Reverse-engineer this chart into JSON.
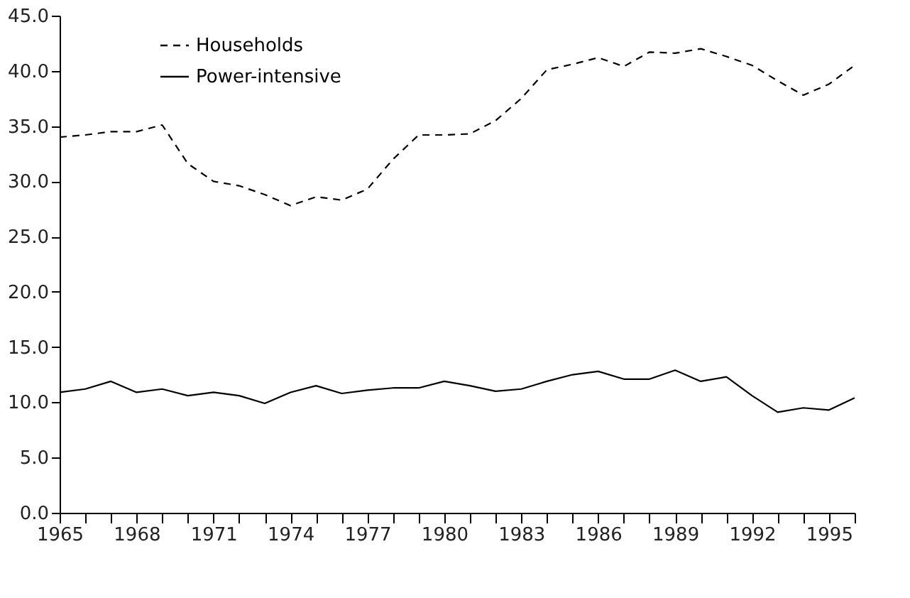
{
  "chart_data": {
    "type": "line",
    "x": [
      1965,
      1966,
      1967,
      1968,
      1969,
      1970,
      1971,
      1972,
      1973,
      1974,
      1975,
      1976,
      1977,
      1978,
      1979,
      1980,
      1981,
      1982,
      1983,
      1984,
      1985,
      1986,
      1987,
      1988,
      1989,
      1990,
      1991,
      1992,
      1993,
      1994,
      1995,
      1996
    ],
    "series": [
      {
        "name": "Households",
        "color": "#000000",
        "line_style": "dashed",
        "values": [
          34.0,
          34.2,
          34.5,
          34.5,
          35.1,
          31.6,
          30.0,
          29.6,
          28.8,
          27.8,
          28.6,
          28.3,
          29.3,
          32.0,
          34.2,
          34.2,
          34.3,
          35.5,
          37.5,
          40.1,
          40.6,
          41.2,
          40.4,
          41.7,
          41.6,
          42.0,
          41.3,
          40.5,
          39.1,
          37.8,
          38.8,
          40.5
        ]
      },
      {
        "name": "Power-intensive",
        "color": "#000000",
        "line_style": "solid",
        "values": [
          10.9,
          11.2,
          11.9,
          10.9,
          11.2,
          10.6,
          10.9,
          10.6,
          9.9,
          10.9,
          11.5,
          10.8,
          11.1,
          11.3,
          11.3,
          11.9,
          11.5,
          11.0,
          11.2,
          11.9,
          12.5,
          12.8,
          12.1,
          12.1,
          12.9,
          11.9,
          12.3,
          10.6,
          9.1,
          9.5,
          9.3,
          10.4
        ]
      }
    ],
    "xlim": [
      1965,
      1996
    ],
    "xticks": [
      1965,
      {
        "value": 1966,
        "label": null
      },
      {
        "value": 1967,
        "label": null
      },
      1968,
      {
        "value": 1969,
        "label": null
      },
      {
        "value": 1970,
        "label": null
      },
      1971,
      {
        "value": 1972,
        "label": null
      },
      {
        "value": 1973,
        "label": null
      },
      1974,
      {
        "value": 1975,
        "label": null
      },
      {
        "value": 1976,
        "label": null
      },
      1977,
      {
        "value": 1978,
        "label": null
      },
      {
        "value": 1979,
        "label": null
      },
      1980,
      {
        "value": 1981,
        "label": null
      },
      {
        "value": 1982,
        "label": null
      },
      1983,
      {
        "value": 1984,
        "label": null
      },
      {
        "value": 1985,
        "label": null
      },
      1986,
      {
        "value": 1987,
        "label": null
      },
      {
        "value": 1988,
        "label": null
      },
      1989,
      {
        "value": 1990,
        "label": null
      },
      {
        "value": 1991,
        "label": null
      },
      1992,
      {
        "value": 1993,
        "label": null
      },
      {
        "value": 1994,
        "label": null
      },
      1995,
      {
        "value": 1996,
        "label": null
      }
    ],
    "ylim": [
      0,
      45
    ],
    "yticks": [
      {
        "value": 0,
        "label": "0.0"
      },
      {
        "value": 5,
        "label": "5.0"
      },
      {
        "value": 10,
        "label": "10.0"
      },
      {
        "value": 15,
        "label": "15.0"
      },
      {
        "value": 20,
        "label": "20.0"
      },
      {
        "value": 25,
        "label": "25.0"
      },
      {
        "value": 30,
        "label": "30.0"
      },
      {
        "value": 35,
        "label": "35.0"
      },
      {
        "value": 40,
        "label": "40.0"
      },
      {
        "value": 45,
        "label": "45.0"
      }
    ],
    "grid": false,
    "legend": "top left",
    "marker": "none"
  }
}
